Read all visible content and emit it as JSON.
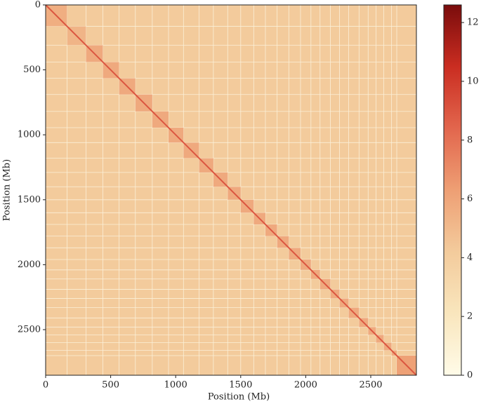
{
  "chart_data": {
    "type": "heatmap",
    "x_label": "Position (Mb)",
    "y_label": "Position (Mb)",
    "xlim": [
      0,
      2851
    ],
    "ylim": [
      2851,
      0
    ],
    "xticks": [
      0,
      500,
      1000,
      1500,
      2000,
      2500
    ],
    "yticks": [
      0,
      500,
      1000,
      1500,
      2000,
      2500
    ],
    "background": 4.2,
    "diagonal": 9,
    "blocks": [
      {
        "start": 0,
        "end": 165,
        "value": 5.6
      },
      {
        "start": 165,
        "end": 310,
        "value": 5.3
      },
      {
        "start": 310,
        "end": 440,
        "value": 5.8
      },
      {
        "start": 440,
        "end": 565,
        "value": 5.8
      },
      {
        "start": 565,
        "end": 690,
        "value": 5.8
      },
      {
        "start": 690,
        "end": 820,
        "value": 5.8
      },
      {
        "start": 820,
        "end": 945,
        "value": 5.8
      },
      {
        "start": 945,
        "end": 1060,
        "value": 5.8
      },
      {
        "start": 1060,
        "end": 1180,
        "value": 5.8
      },
      {
        "start": 1180,
        "end": 1290,
        "value": 5.8
      },
      {
        "start": 1290,
        "end": 1400,
        "value": 5.8
      },
      {
        "start": 1400,
        "end": 1500,
        "value": 5.8
      },
      {
        "start": 1500,
        "end": 1600,
        "value": 5.8
      },
      {
        "start": 1600,
        "end": 1690,
        "value": 5.8
      },
      {
        "start": 1690,
        "end": 1780,
        "value": 5.8
      },
      {
        "start": 1780,
        "end": 1870,
        "value": 5.8
      },
      {
        "start": 1870,
        "end": 1960,
        "value": 5.8
      },
      {
        "start": 1960,
        "end": 2040,
        "value": 5.8
      },
      {
        "start": 2040,
        "end": 2110,
        "value": 5.8
      },
      {
        "start": 2110,
        "end": 2190,
        "value": 5.8
      },
      {
        "start": 2190,
        "end": 2260,
        "value": 5.8
      },
      {
        "start": 2260,
        "end": 2330,
        "value": 5.8
      },
      {
        "start": 2330,
        "end": 2410,
        "value": 5.8
      },
      {
        "start": 2410,
        "end": 2480,
        "value": 5.8
      },
      {
        "start": 2480,
        "end": 2540,
        "value": 5.8
      },
      {
        "start": 2540,
        "end": 2600,
        "value": 5.8
      },
      {
        "start": 2600,
        "end": 2660,
        "value": 5.8
      },
      {
        "start": 2660,
        "end": 2700,
        "value": 5.8
      },
      {
        "start": 2700,
        "end": 2851,
        "value": 6.2
      }
    ],
    "clim": [
      0,
      12.6
    ],
    "cticks": [
      0,
      2,
      4,
      6,
      8,
      10,
      12
    ],
    "colormap": [
      "#fffbe8",
      "#f9e6bd",
      "#f3cb9c",
      "#ee9f74",
      "#e2664d",
      "#ca2d21",
      "#7a0c0c"
    ]
  }
}
